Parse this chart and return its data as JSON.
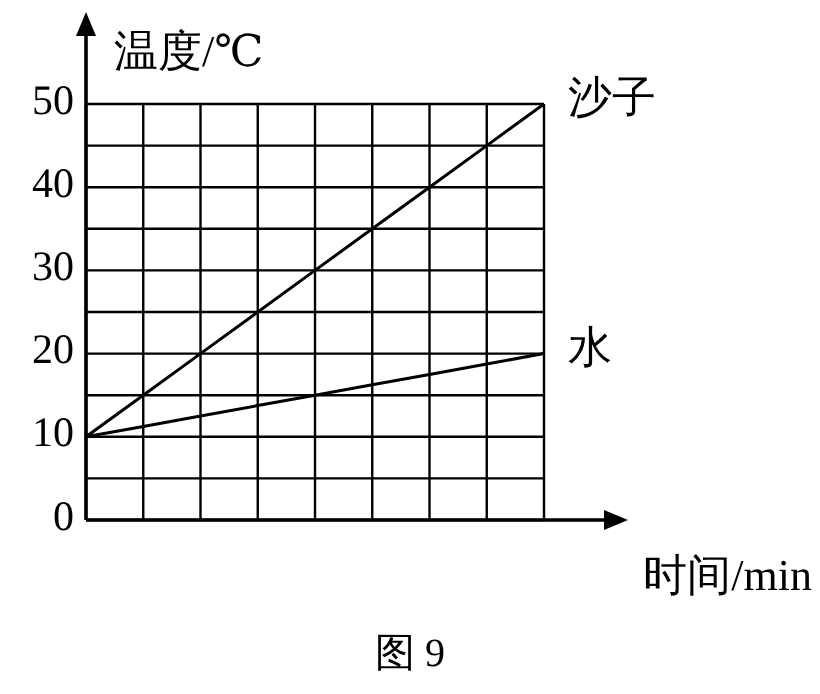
{
  "chart_data": {
    "type": "line",
    "xlabel": "时间/min",
    "ylabel": "温度/℃",
    "categories": [
      null,
      null,
      null,
      null,
      null,
      null,
      null,
      null,
      null
    ],
    "ylim": [
      0,
      50
    ],
    "yticks": [
      0,
      {
        "value": 5,
        "label": null
      },
      10,
      {
        "value": 15,
        "label": null
      },
      20,
      {
        "value": 25,
        "label": null
      },
      30,
      {
        "value": 35,
        "label": null
      },
      40,
      {
        "value": 45,
        "label": null
      },
      50
    ],
    "grid": true,
    "legend": false,
    "marker": "none",
    "series": [
      {
        "name": "沙子",
        "color": "#000000",
        "values": [
          10,
          15,
          20,
          25,
          30,
          35,
          40,
          45,
          50
        ]
      },
      {
        "name": "水",
        "color": "#000000",
        "values": [
          10,
          11.25,
          12.5,
          13.75,
          15,
          16.25,
          17.5,
          18.75,
          20
        ]
      }
    ],
    "annotations": [
      "图 9"
    ]
  }
}
